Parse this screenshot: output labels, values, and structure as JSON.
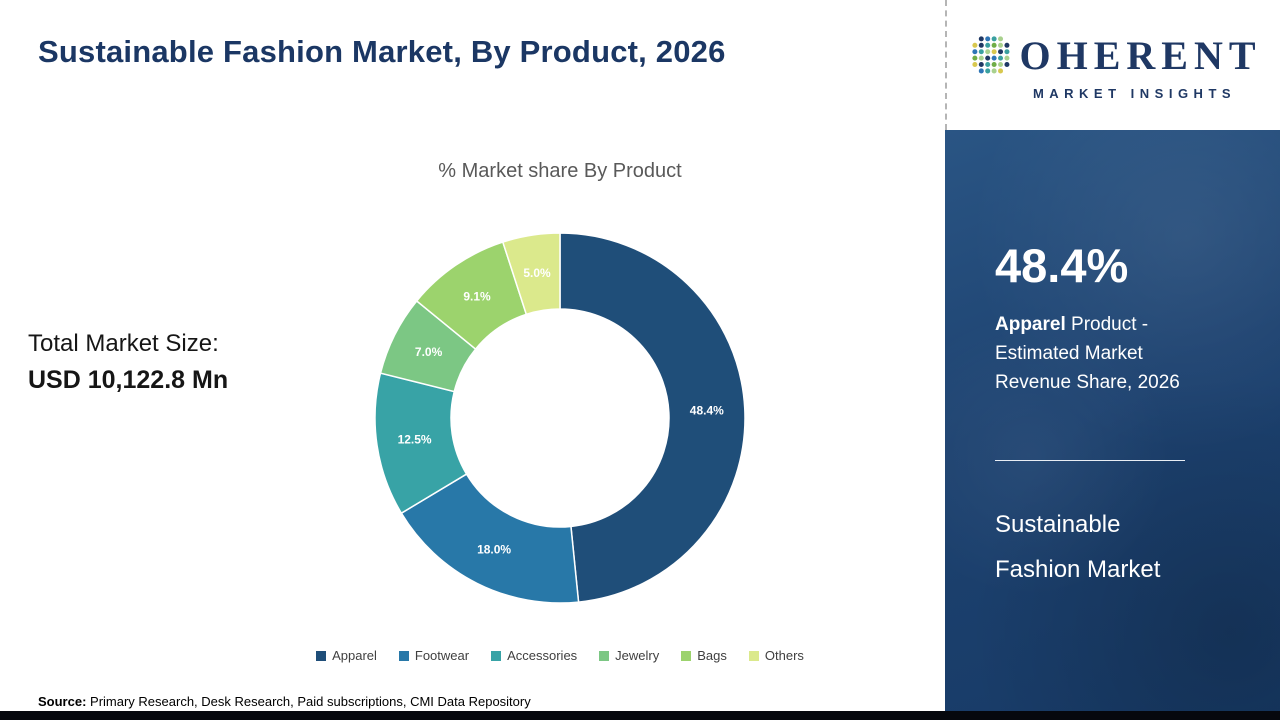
{
  "page": {
    "title": "Sustainable Fashion Market, By Product, 2026"
  },
  "chart": {
    "title": "% Market share By Product"
  },
  "total_market": {
    "label": "Total Market Size:",
    "value": "USD 10,122.8 Mn"
  },
  "chart_data": {
    "type": "pie",
    "donut": true,
    "title": "% Market share By Product",
    "categories": [
      "Apparel",
      "Footwear",
      "Accessories",
      "Jewelry",
      "Bags",
      "Others"
    ],
    "values": [
      48.4,
      18.0,
      12.5,
      7.0,
      9.1,
      5.0
    ],
    "labels": [
      "48.4%",
      "18.0%",
      "12.5%",
      "7.0%",
      "9.1%",
      "5.0%"
    ],
    "colors": [
      "#1f4e79",
      "#2878a8",
      "#38a3a6",
      "#7cc784",
      "#9cd36d",
      "#dbe98c"
    ],
    "unit": "%",
    "legend_position": "bottom"
  },
  "sidebar": {
    "logo": {
      "wordmark_rest": "OHERENT",
      "subtitle": "MARKET INSIGHTS"
    },
    "highlight_value": "48.4%",
    "caption": {
      "bold": "Apparel",
      "line1_rest": " Product -",
      "line2": "Estimated Market",
      "line3": "Revenue Share, 2026"
    },
    "market_line1": "Sustainable",
    "market_line2": "Fashion Market"
  },
  "footer": {
    "source_label": "Source:",
    "source_rest": " Primary Research, Desk Research, Paid subscriptions, CMI Data Repository"
  },
  "colors": {
    "accent_navy": "#1f3864",
    "panel_blue": "#1d4270",
    "chart_title_gray": "#595959"
  }
}
